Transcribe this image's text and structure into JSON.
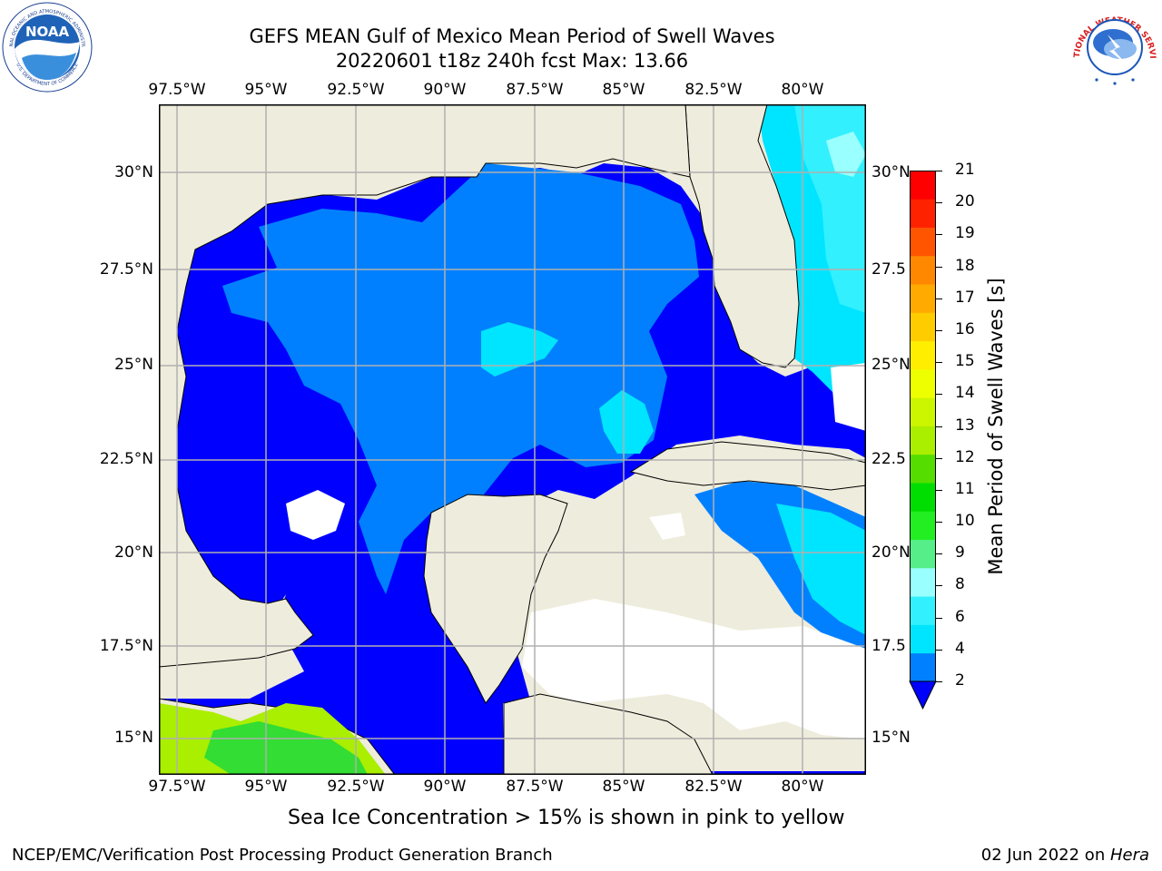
{
  "title": {
    "line1": "GEFS MEAN Gulf of Mexico Mean Period of Swell Waves",
    "line2": "20220601 t18z 240h fcst   Max: 13.66"
  },
  "logos": {
    "noaa_text": "NOAA",
    "noaa_ring_top": "NATIONAL OCEANIC AND ATMOSPHERIC ADMINISTRATION",
    "noaa_ring_bottom": "U.S. DEPARTMENT OF COMMERCE",
    "nws_ring": "NATIONAL WEATHER SERVICE"
  },
  "map": {
    "region": "Gulf of Mexico",
    "lon_labels": [
      "97.5°W",
      "95°W",
      "92.5°W",
      "90°W",
      "87.5°W",
      "85°W",
      "82.5°W",
      "80°W"
    ],
    "lat_labels_left": [
      "30°N",
      "27.5°N",
      "25°N",
      "22.5°N",
      "20°N",
      "17.5°N",
      "15°N"
    ],
    "lat_labels_right": [
      "30°N",
      "27.5",
      "25°N",
      "22.5",
      "20°N",
      "17.5",
      "15°N"
    ],
    "colors": {
      "land": "#eeecdc",
      "grid": "#b0b0b0",
      "coast": "#000000"
    }
  },
  "colorbar": {
    "label": "Mean Period of Swell Waves [s]",
    "ticks": [
      "2",
      "4",
      "6",
      "8",
      "9",
      "10",
      "11",
      "12",
      "13",
      "14",
      "15",
      "16",
      "17",
      "18",
      "19",
      "20",
      "21"
    ],
    "extend": "min",
    "colors": [
      "#0080ff",
      "#00e5ff",
      "#33f0ff",
      "#99ffff",
      "#55ee88",
      "#22ee22",
      "#00dd00",
      "#55dd00",
      "#aaee00",
      "#ccf500",
      "#eeff00",
      "#ffee00",
      "#ffcc00",
      "#ffaa00",
      "#ff8800",
      "#ff5500",
      "#ff2200",
      "#ff0000"
    ],
    "under_color": "#0000ff"
  },
  "notice": "Sea Ice Concentration > 15% is shown in pink to yellow",
  "footer": {
    "left": "NCEP/EMC/Verification Post Processing Product Generation Branch",
    "date": "02 Jun 2022 on ",
    "host": "Hera"
  }
}
